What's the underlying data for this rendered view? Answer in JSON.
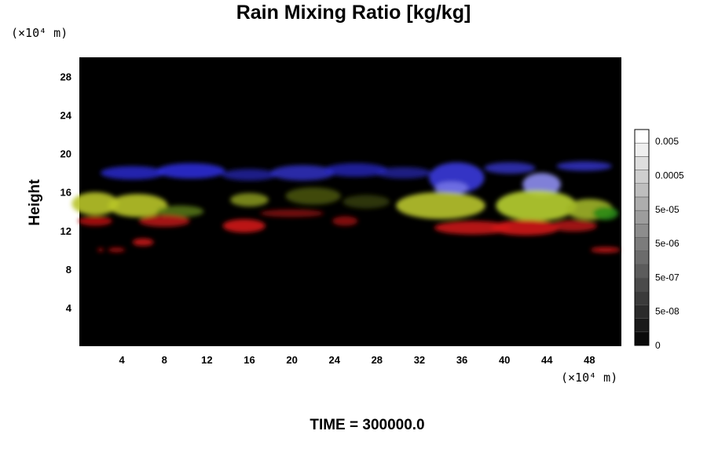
{
  "chart_data": {
    "type": "heatmap",
    "title": "Rain Mixing Ratio [kg/kg]",
    "ylabel": "Height",
    "y_unit": "(×10⁴ m)",
    "x_unit": "(×10⁴ m)",
    "xlim": [
      0,
      51
    ],
    "ylim": [
      0,
      30
    ],
    "x_ticks": [
      4,
      8,
      12,
      16,
      20,
      24,
      28,
      32,
      36,
      40,
      44,
      48
    ],
    "y_ticks": [
      4,
      8,
      12,
      16,
      20,
      24,
      28
    ],
    "background_color": "#000000",
    "colorbar": {
      "tick_labels": [
        "0",
        "5e-08",
        "5e-07",
        "5e-06",
        "5e-05",
        "0.0005",
        "0.005"
      ],
      "levels": 16,
      "colors": [
        "#0a0a0a",
        "#ffffff"
      ]
    },
    "regions": [
      {
        "color": "#2a2ad8",
        "opacity": 0.8,
        "x": 5.0,
        "y": 18.0,
        "rx": 3.0,
        "ry": 0.7
      },
      {
        "color": "#3030e0",
        "opacity": 0.85,
        "x": 10.5,
        "y": 18.2,
        "rx": 3.2,
        "ry": 0.8
      },
      {
        "color": "#2828c0",
        "opacity": 0.7,
        "x": 16.0,
        "y": 17.8,
        "rx": 2.6,
        "ry": 0.6
      },
      {
        "color": "#3232d0",
        "opacity": 0.8,
        "x": 21.0,
        "y": 18.0,
        "rx": 3.0,
        "ry": 0.8
      },
      {
        "color": "#2a2ac8",
        "opacity": 0.75,
        "x": 26.0,
        "y": 18.3,
        "rx": 3.0,
        "ry": 0.7
      },
      {
        "color": "#2626b8",
        "opacity": 0.7,
        "x": 30.5,
        "y": 18.0,
        "rx": 2.6,
        "ry": 0.6
      },
      {
        "color": "#3c3ce8",
        "opacity": 0.85,
        "x": 35.5,
        "y": 17.5,
        "rx": 2.6,
        "ry": 1.6
      },
      {
        "color": "#3838d8",
        "opacity": 0.75,
        "x": 40.5,
        "y": 18.5,
        "rx": 2.4,
        "ry": 0.6
      },
      {
        "color": "#3a3ae0",
        "opacity": 0.75,
        "x": 47.5,
        "y": 18.7,
        "rx": 2.6,
        "ry": 0.5
      },
      {
        "color": "#8e8ef0",
        "opacity": 0.9,
        "x": 43.5,
        "y": 16.8,
        "rx": 1.8,
        "ry": 1.2
      },
      {
        "color": "#7c7ce8",
        "opacity": 0.8,
        "x": 35.0,
        "y": 16.4,
        "rx": 1.6,
        "ry": 0.7
      },
      {
        "color": "#b8c428",
        "opacity": 0.9,
        "x": 1.5,
        "y": 14.8,
        "rx": 2.2,
        "ry": 1.2
      },
      {
        "color": "#b8c428",
        "opacity": 0.9,
        "x": 5.5,
        "y": 14.6,
        "rx": 2.8,
        "ry": 1.2
      },
      {
        "color": "#5a7a18",
        "opacity": 0.85,
        "x": 9.5,
        "y": 14.0,
        "rx": 2.2,
        "ry": 0.6
      },
      {
        "color": "#8a9a20",
        "opacity": 0.85,
        "x": 16.0,
        "y": 15.2,
        "rx": 1.8,
        "ry": 0.7
      },
      {
        "color": "#6a7a18",
        "opacity": 0.6,
        "x": 22.0,
        "y": 15.6,
        "rx": 2.6,
        "ry": 0.9
      },
      {
        "color": "#5a6a10",
        "opacity": 0.5,
        "x": 27.0,
        "y": 15.0,
        "rx": 2.2,
        "ry": 0.7
      },
      {
        "color": "#b4c02a",
        "opacity": 0.92,
        "x": 34.0,
        "y": 14.6,
        "rx": 4.2,
        "ry": 1.4
      },
      {
        "color": "#b8d030",
        "opacity": 0.9,
        "x": 43.0,
        "y": 14.6,
        "rx": 3.8,
        "ry": 1.6
      },
      {
        "color": "#a0b428",
        "opacity": 0.9,
        "x": 48.0,
        "y": 14.2,
        "rx": 2.2,
        "ry": 1.1
      },
      {
        "color": "#2a8a18",
        "opacity": 0.9,
        "x": 49.5,
        "y": 13.8,
        "rx": 1.2,
        "ry": 0.7
      },
      {
        "color": "#b01010",
        "opacity": 0.9,
        "x": 1.5,
        "y": 13.0,
        "rx": 1.6,
        "ry": 0.5
      },
      {
        "color": "#c01414",
        "opacity": 0.85,
        "x": 8.0,
        "y": 13.0,
        "rx": 2.4,
        "ry": 0.6
      },
      {
        "color": "#d01818",
        "opacity": 0.9,
        "x": 15.5,
        "y": 12.5,
        "rx": 2.0,
        "ry": 0.7
      },
      {
        "color": "#901010",
        "opacity": 0.8,
        "x": 20.0,
        "y": 13.8,
        "rx": 3.0,
        "ry": 0.4
      },
      {
        "color": "#a01010",
        "opacity": 0.8,
        "x": 25.0,
        "y": 13.0,
        "rx": 1.2,
        "ry": 0.5
      },
      {
        "color": "#c81414",
        "opacity": 0.9,
        "x": 37.0,
        "y": 12.3,
        "rx": 3.6,
        "ry": 0.7
      },
      {
        "color": "#d01818",
        "opacity": 0.9,
        "x": 42.0,
        "y": 12.3,
        "rx": 3.2,
        "ry": 0.8
      },
      {
        "color": "#b81414",
        "opacity": 0.85,
        "x": 46.5,
        "y": 12.5,
        "rx": 2.2,
        "ry": 0.6
      },
      {
        "color": "#c81414",
        "opacity": 0.9,
        "x": 6.0,
        "y": 10.8,
        "rx": 1.0,
        "ry": 0.4
      },
      {
        "color": "#b01010",
        "opacity": 0.85,
        "x": 3.5,
        "y": 10.0,
        "rx": 0.8,
        "ry": 0.25
      },
      {
        "color": "#b01010",
        "opacity": 0.85,
        "x": 2.0,
        "y": 10.0,
        "rx": 0.3,
        "ry": 0.2
      },
      {
        "color": "#c01414",
        "opacity": 0.9,
        "x": 49.5,
        "y": 10.0,
        "rx": 1.4,
        "ry": 0.3
      }
    ]
  },
  "time_label": "TIME = 300000.0"
}
